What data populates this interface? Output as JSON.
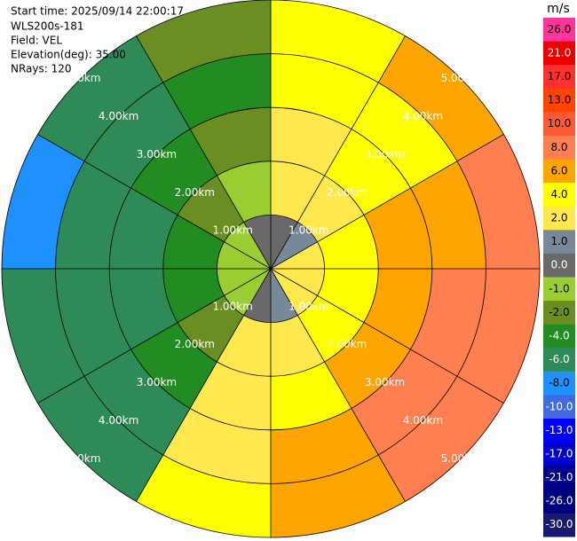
{
  "chart_data": {
    "type": "ppi",
    "header": [
      "Start time: 2025/09/14 22:00:17",
      "WLS200s-181",
      "Field: VEL",
      "Elevation(deg): 35.00",
      "NRays: 120"
    ],
    "rings": [
      {
        "value": 1,
        "label": "1.00km"
      },
      {
        "value": 2,
        "label": "2.00km"
      },
      {
        "value": 3,
        "label": "3.00km"
      },
      {
        "value": 4,
        "label": "4.00km"
      },
      {
        "value": 5,
        "label": "5.00km"
      }
    ],
    "azimuths": [
      0,
      30,
      60,
      90,
      120,
      150,
      180,
      210,
      240,
      270,
      300,
      330
    ],
    "series": [
      {
        "values": [
          0.5,
          3,
          3,
          4,
          5
        ]
      },
      {
        "values": [
          1,
          3,
          4,
          5,
          6
        ]
      },
      {
        "values": [
          2,
          4,
          6,
          7,
          8
        ]
      },
      {
        "values": [
          2,
          5,
          7,
          8,
          8
        ]
      },
      {
        "values": [
          2,
          4,
          7,
          8,
          8
        ]
      },
      {
        "values": [
          1,
          3,
          5,
          6,
          6
        ]
      },
      {
        "values": [
          0,
          2,
          3,
          3,
          4
        ]
      },
      {
        "values": [
          -1,
          -2,
          -4,
          -5,
          -6
        ]
      },
      {
        "values": [
          -1,
          -4,
          -6,
          -6,
          -6
        ]
      },
      {
        "values": [
          -1,
          -3,
          -6,
          -6,
          -7
        ]
      },
      {
        "values": [
          -1,
          -2,
          -4,
          -6,
          -6
        ]
      },
      {
        "values": [
          0,
          -1,
          -2,
          -3,
          -2
        ]
      }
    ],
    "colorbar": {
      "unit": "m/s",
      "levels": [
        {
          "value": 26,
          "label": "26.0"
        },
        {
          "value": 21,
          "label": "21.0"
        },
        {
          "value": 17,
          "label": "17.0"
        },
        {
          "value": 13,
          "label": "13.0"
        },
        {
          "value": 10,
          "label": "10.0"
        },
        {
          "value": 8,
          "label": "8.0"
        },
        {
          "value": 6,
          "label": "6.0"
        },
        {
          "value": 4,
          "label": "4.0"
        },
        {
          "value": 2,
          "label": "2.0"
        },
        {
          "value": 1,
          "label": "1.0"
        },
        {
          "value": 0,
          "label": "0.0"
        },
        {
          "value": -1,
          "label": "-1.0"
        },
        {
          "value": -2,
          "label": "-2.0"
        },
        {
          "value": -4,
          "label": "-4.0"
        },
        {
          "value": -6,
          "label": "-6.0"
        },
        {
          "value": -8,
          "label": "-8.0"
        },
        {
          "value": -10,
          "label": "-10.0"
        },
        {
          "value": -13,
          "label": "-13.0"
        },
        {
          "value": -17,
          "label": "-17.0"
        },
        {
          "value": -21,
          "label": "-21.0"
        },
        {
          "value": -26,
          "label": "-26.0"
        },
        {
          "value": -30,
          "label": "-30.0"
        }
      ],
      "colors": [
        "#ff3399",
        "#ee0000",
        "#ff3030",
        "#ff4500",
        "#ff5a36",
        "#ff7f50",
        "#ffa500",
        "#ffff00",
        "#ffe84d",
        "#778899",
        "#696969",
        "#9acd32",
        "#6b8e23",
        "#228b22",
        "#2e8b57",
        "#1e90ff",
        "#4169e1",
        "#0000ff",
        "#0000cd",
        "#00008b",
        "#000080",
        "#191970"
      ]
    }
  }
}
